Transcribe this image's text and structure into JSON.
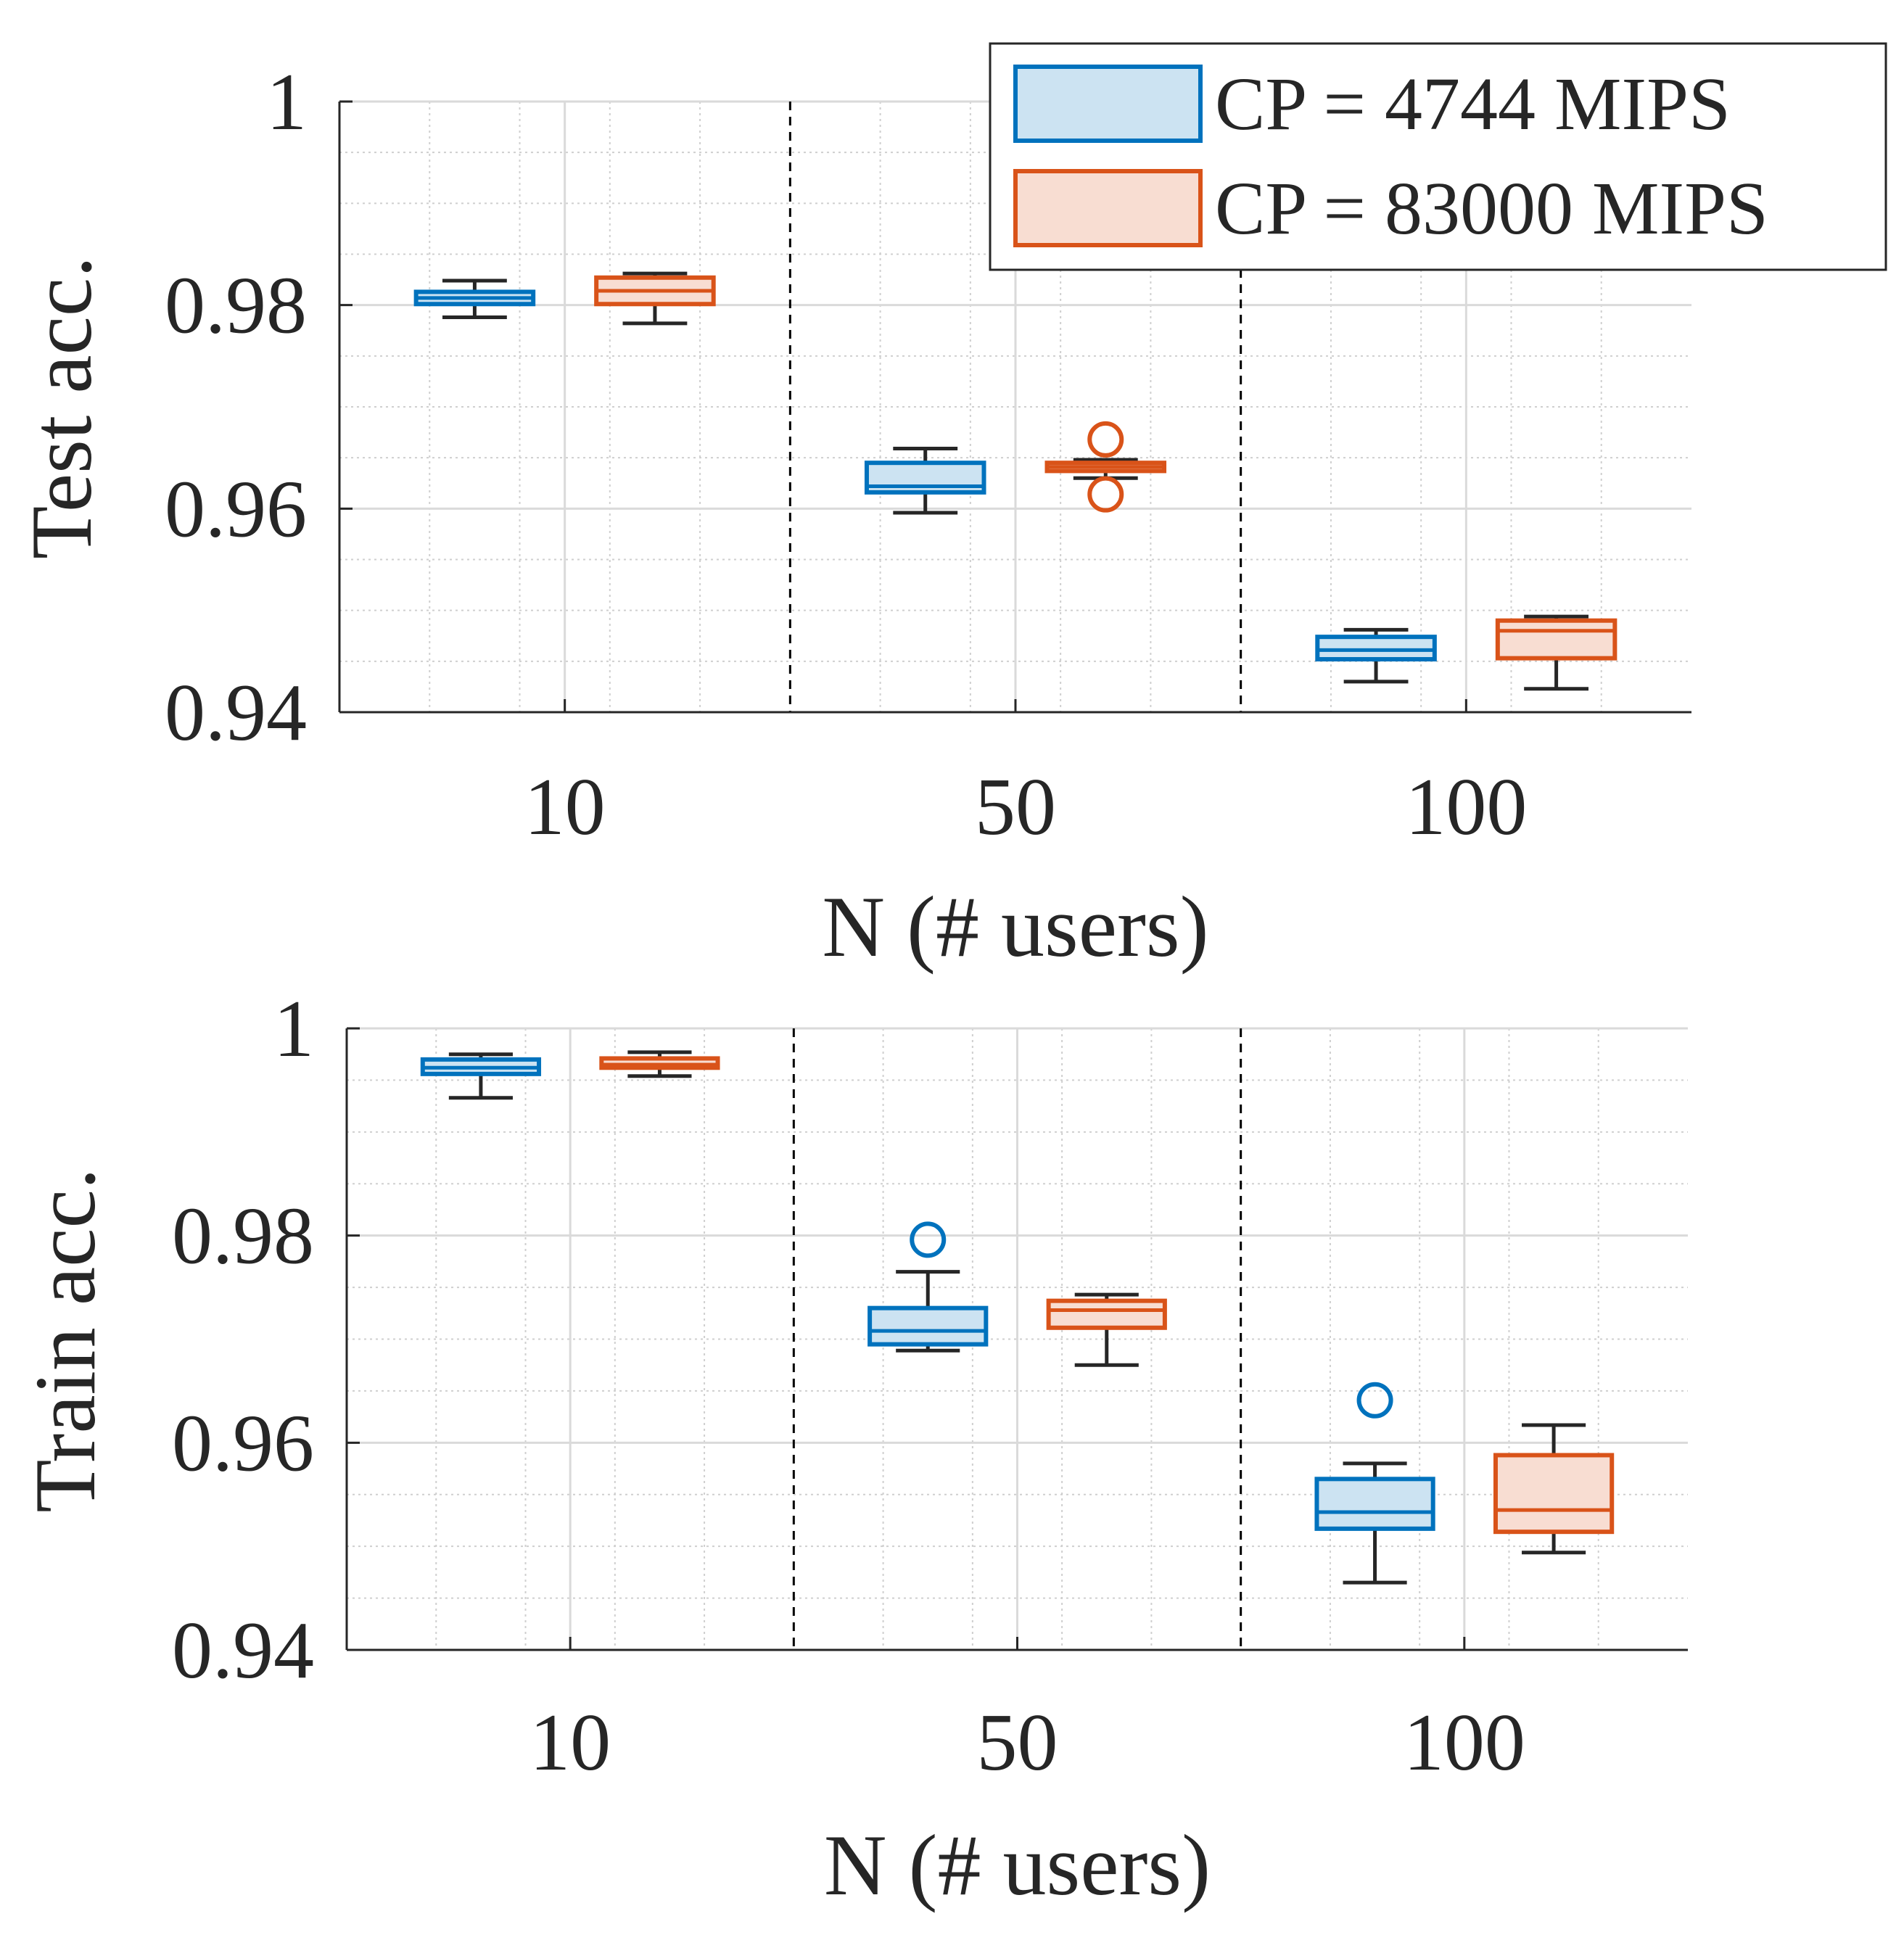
{
  "chart_data": [
    {
      "type": "box",
      "id": "test",
      "ylabel": "Test acc.",
      "xlabel": "N (# users)",
      "categories": [
        "10",
        "50",
        "100"
      ],
      "ylim": [
        0.94,
        1.0
      ],
      "yticks": [
        "0.94",
        "0.96",
        "0.98",
        "1"
      ],
      "yticks_values": [
        0.94,
        0.96,
        0.98,
        1.0
      ],
      "grid": true,
      "series": [
        {
          "name": "CP = 4744 MIPS",
          "boxes": [
            {
              "category": "10",
              "whisker_low": 0.9788,
              "q1": 0.9801,
              "median": 0.9807,
              "q3": 0.9813,
              "whisker_high": 0.9824,
              "outliers": []
            },
            {
              "category": "50",
              "whisker_low": 0.9596,
              "q1": 0.9616,
              "median": 0.9622,
              "q3": 0.9645,
              "whisker_high": 0.9659,
              "outliers": []
            },
            {
              "category": "100",
              "whisker_low": 0.943,
              "q1": 0.9452,
              "median": 0.9461,
              "q3": 0.9474,
              "whisker_high": 0.9481,
              "outliers": []
            }
          ]
        },
        {
          "name": "CP = 83000 MIPS",
          "boxes": [
            {
              "category": "10",
              "whisker_low": 0.9782,
              "q1": 0.9801,
              "median": 0.9814,
              "q3": 0.9827,
              "whisker_high": 0.9831,
              "outliers": []
            },
            {
              "category": "50",
              "whisker_low": 0.963,
              "q1": 0.9637,
              "median": 0.9641,
              "q3": 0.9645,
              "whisker_high": 0.9648,
              "outliers": [
                0.9668,
                0.9614
              ]
            },
            {
              "category": "100",
              "whisker_low": 0.9423,
              "q1": 0.9453,
              "median": 0.948,
              "q3": 0.949,
              "whisker_high": 0.9494,
              "outliers": []
            }
          ]
        }
      ]
    },
    {
      "type": "box",
      "id": "train",
      "ylabel": "Train acc.",
      "xlabel": "N (# users)",
      "categories": [
        "10",
        "50",
        "100"
      ],
      "ylim": [
        0.94,
        1.0
      ],
      "yticks": [
        "0.94",
        "0.96",
        "0.98",
        "1"
      ],
      "yticks_values": [
        0.94,
        0.96,
        0.98,
        1.0
      ],
      "grid": true,
      "series": [
        {
          "name": "CP = 4744 MIPS",
          "boxes": [
            {
              "category": "10",
              "whisker_low": 0.9933,
              "q1": 0.9956,
              "median": 0.9962,
              "q3": 0.997,
              "whisker_high": 0.9975,
              "outliers": []
            },
            {
              "category": "50",
              "whisker_low": 0.9689,
              "q1": 0.9695,
              "median": 0.9708,
              "q3": 0.973,
              "whisker_high": 0.9765,
              "outliers": [
                0.9796
              ]
            },
            {
              "category": "100",
              "whisker_low": 0.9465,
              "q1": 0.9517,
              "median": 0.9533,
              "q3": 0.9565,
              "whisker_high": 0.958,
              "outliers": [
                0.9641
              ]
            }
          ]
        },
        {
          "name": "CP = 83000 MIPS",
          "boxes": [
            {
              "category": "10",
              "whisker_low": 0.9954,
              "q1": 0.9962,
              "median": 0.9965,
              "q3": 0.9971,
              "whisker_high": 0.9977,
              "outliers": []
            },
            {
              "category": "50",
              "whisker_low": 0.9675,
              "q1": 0.9711,
              "median": 0.9728,
              "q3": 0.9737,
              "whisker_high": 0.9743,
              "outliers": []
            },
            {
              "category": "100",
              "whisker_low": 0.9494,
              "q1": 0.9514,
              "median": 0.9535,
              "q3": 0.9588,
              "whisker_high": 0.9617,
              "outliers": []
            }
          ]
        }
      ]
    }
  ],
  "legend": {
    "position": "top-right",
    "entries": [
      {
        "label": "CP = 4744 MIPS",
        "edge_color": "#0072BD",
        "fill_color": "#CCE3F2"
      },
      {
        "label": "CP = 83000 MIPS",
        "edge_color": "#D95319",
        "fill_color": "#F8DDD2"
      }
    ]
  },
  "colors": {
    "series": [
      "#0072BD",
      "#D95319"
    ],
    "fills": [
      "#CCE3F2",
      "#F8DDD2"
    ],
    "whisker": "#262626",
    "axis": "#262626",
    "grid_major": "#DADADA",
    "grid_minor": "#CFCFCF"
  }
}
